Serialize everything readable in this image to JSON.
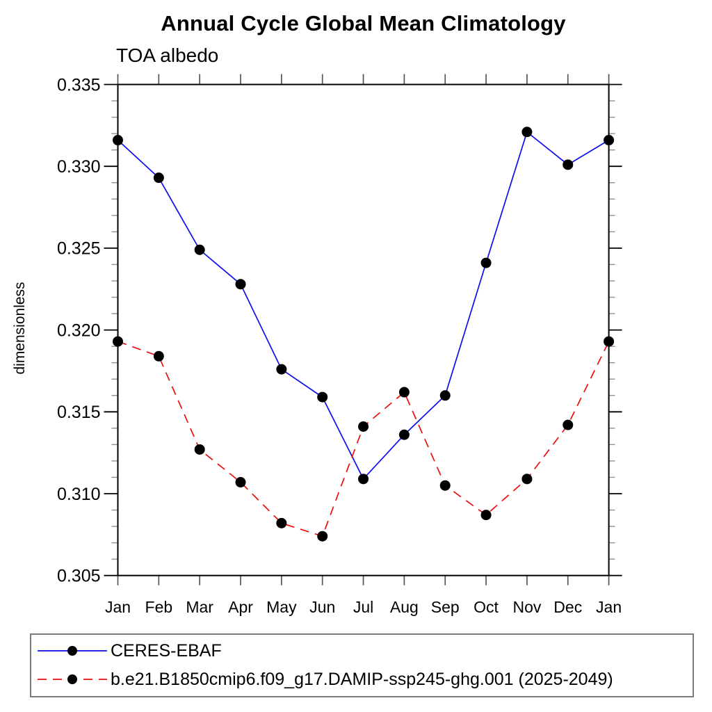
{
  "chart_data": {
    "type": "line",
    "title": "Annual Cycle Global Mean Climatology",
    "subtitle": "TOA albedo",
    "ylabel": "dimensionless",
    "xlabel": "",
    "categories": [
      "Jan",
      "Feb",
      "Mar",
      "Apr",
      "May",
      "Jun",
      "Jul",
      "Aug",
      "Sep",
      "Oct",
      "Nov",
      "Dec",
      "Jan"
    ],
    "ylim": [
      0.305,
      0.335
    ],
    "y_major_tick_labels": [
      "0.305",
      "0.310",
      "0.315",
      "0.320",
      "0.325",
      "0.330",
      "0.335"
    ],
    "y_minor_tick_step": 0.001,
    "grid": false,
    "legend_position": "bottom-box",
    "marker": "filled-circle",
    "marker_color": "#000000",
    "axis_color": "#000000",
    "minor_tick_color": "#909090",
    "month_tick_color": "#555555",
    "series": [
      {
        "name": "CERES-EBAF",
        "color": "#0d0dee",
        "style": "solid",
        "values": [
          0.3316,
          0.3293,
          0.3249,
          0.3228,
          0.3176,
          0.3159,
          0.3109,
          0.3136,
          0.316,
          0.3241,
          0.3321,
          0.3301,
          0.3316
        ]
      },
      {
        "name": "b.e21.B1850cmip6.f09_g17.DAMIP-ssp245-ghg.001 (2025-2049)",
        "color": "#ee0d0d",
        "style": "dashed",
        "values": [
          0.3193,
          0.3184,
          0.3127,
          0.3107,
          0.3082,
          0.3074,
          0.3141,
          0.3162,
          0.3105,
          0.3087,
          0.3109,
          0.3142,
          0.3193
        ]
      }
    ]
  }
}
